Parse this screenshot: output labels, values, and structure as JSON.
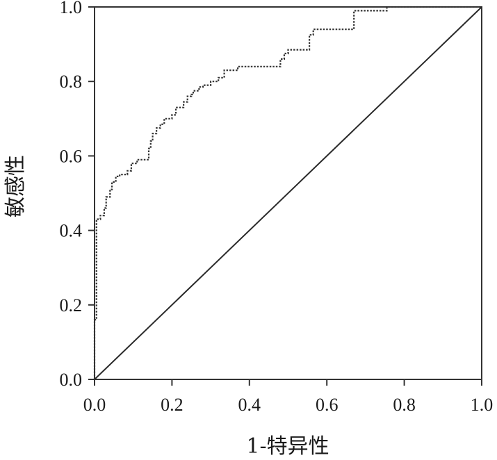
{
  "chart_data": {
    "type": "line",
    "xlabel": "1-特异性",
    "ylabel": "敏感性",
    "xlim": [
      0,
      1
    ],
    "ylim": [
      0,
      1
    ],
    "grid": false,
    "x_ticks": [
      "0.0",
      "0.2",
      "0.4",
      "0.6",
      "0.8",
      "1.0"
    ],
    "y_ticks": [
      "0.0",
      "0.2",
      "0.4",
      "0.6",
      "0.8",
      "1.0"
    ],
    "series": [
      {
        "style": "dotted-step",
        "color": "#333333",
        "x": [
          0.0,
          0.0,
          0.005,
          0.005,
          0.015,
          0.015,
          0.025,
          0.025,
          0.03,
          0.03,
          0.04,
          0.04,
          0.045,
          0.045,
          0.055,
          0.055,
          0.065,
          0.065,
          0.085,
          0.085,
          0.095,
          0.095,
          0.11,
          0.11,
          0.14,
          0.14,
          0.145,
          0.145,
          0.15,
          0.15,
          0.16,
          0.16,
          0.17,
          0.17,
          0.18,
          0.18,
          0.2,
          0.2,
          0.21,
          0.21,
          0.23,
          0.23,
          0.24,
          0.24,
          0.25,
          0.25,
          0.255,
          0.255,
          0.27,
          0.27,
          0.28,
          0.28,
          0.3,
          0.3,
          0.32,
          0.32,
          0.335,
          0.335,
          0.37,
          0.37,
          0.48,
          0.48,
          0.49,
          0.49,
          0.5,
          0.5,
          0.555,
          0.555,
          0.565,
          0.565,
          0.67,
          0.67,
          0.755,
          0.755,
          1.0
        ],
        "y": [
          0.0,
          0.16,
          0.16,
          0.43,
          0.43,
          0.44,
          0.44,
          0.46,
          0.46,
          0.49,
          0.49,
          0.51,
          0.51,
          0.53,
          0.53,
          0.545,
          0.545,
          0.55,
          0.55,
          0.56,
          0.56,
          0.58,
          0.58,
          0.59,
          0.59,
          0.62,
          0.62,
          0.64,
          0.64,
          0.66,
          0.66,
          0.675,
          0.675,
          0.685,
          0.685,
          0.7,
          0.7,
          0.71,
          0.71,
          0.73,
          0.73,
          0.745,
          0.745,
          0.76,
          0.76,
          0.765,
          0.765,
          0.775,
          0.775,
          0.785,
          0.785,
          0.79,
          0.79,
          0.8,
          0.8,
          0.81,
          0.81,
          0.83,
          0.83,
          0.84,
          0.84,
          0.86,
          0.86,
          0.875,
          0.875,
          0.885,
          0.885,
          0.925,
          0.925,
          0.94,
          0.94,
          0.99,
          0.99,
          1.0,
          1.0
        ]
      },
      {
        "style": "solid",
        "color": "#2a2a2a",
        "x": [
          0,
          1
        ],
        "y": [
          0,
          1
        ]
      }
    ]
  }
}
